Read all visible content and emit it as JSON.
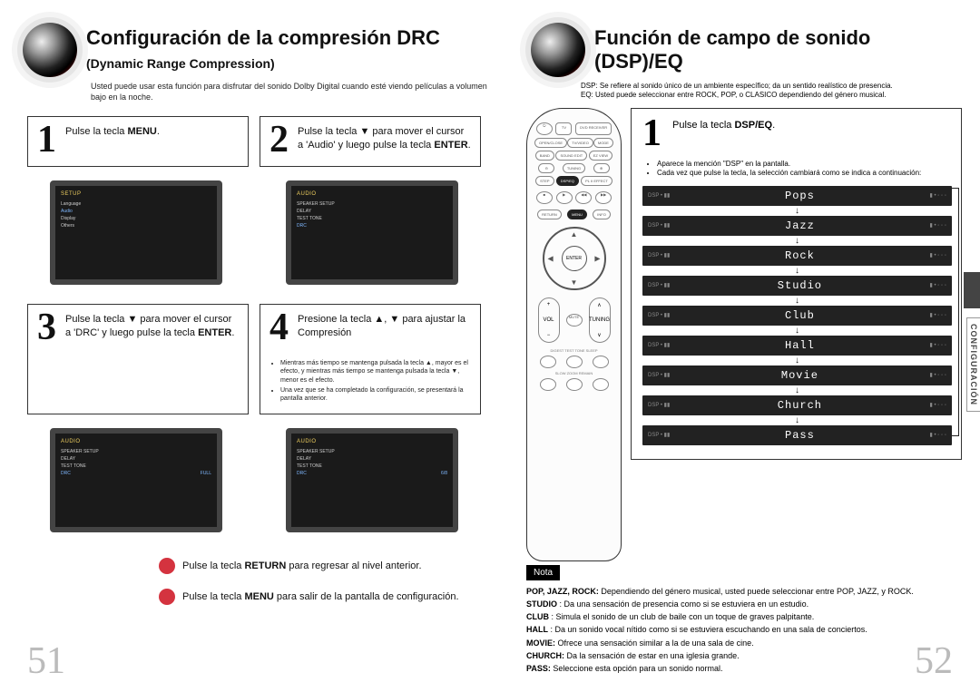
{
  "left": {
    "title_main": "Configuración de la compresión DRC ",
    "title_sub": "(Dynamic Range Compression)",
    "subtitle": "Usted puede usar esta función para disfrutar del sonido Dolby Digital cuando esté viendo películas a volumen bajo en la noche.",
    "steps": {
      "1": {
        "num": "1",
        "text_a": "Pulse la tecla ",
        "text_b": "MENU",
        "text_c": "."
      },
      "2": {
        "num": "2",
        "text": "Pulse la tecla ▼ para mover el cursor a 'Audio' y luego pulse la tecla ",
        "bold": "ENTER",
        "tail": "."
      },
      "3": {
        "num": "3",
        "text": "Pulse la tecla ▼ para mover el cursor a 'DRC' y luego pulse la tecla ",
        "bold": "ENTER",
        "tail": "."
      },
      "4": {
        "num": "4",
        "text": "Presione la tecla  ▲, ▼ para ajustar la Compresión",
        "notes": [
          "Mientras más tiempo se mantenga pulsada la tecla ▲, mayor es el efecto, y mientras más tiempo se mantenga pulsada la tecla ▼, menor es el efecto.",
          "Una vez que se ha completado la configuración, se presentará la pantalla anterior."
        ]
      }
    },
    "actions": {
      "return": {
        "pre": "Pulse la tecla ",
        "bold": "RETURN",
        "post": " para regresar al nivel anterior."
      },
      "menu": {
        "pre": "Pulse la tecla ",
        "bold": "MENU",
        "post": " para salir de la pantalla de configuración."
      }
    },
    "page_num": "51",
    "screenshots": {
      "s1_title": "SETUP",
      "s1_rows": [
        "Language",
        "Audio",
        "Display",
        "Others"
      ],
      "s2_title": "AUDIO",
      "s2_rows": [
        "SPEAKER SETUP",
        "DELAY",
        "TEST TONE",
        "DRC"
      ],
      "s3_title": "AUDIO",
      "s3_rows_left": [
        "SPEAKER SETUP",
        "DELAY",
        "TEST TONE",
        "DRC"
      ],
      "s3_vals": [
        "",
        "",
        "",
        "FULL"
      ],
      "s4_title": "AUDIO",
      "s4_rows_left": [
        "SPEAKER SETUP",
        "DELAY",
        "TEST TONE",
        "DRC"
      ],
      "s4_vals": [
        "",
        "",
        "",
        "6/8"
      ]
    }
  },
  "right": {
    "title": "Función de campo de sonido (DSP)/EQ",
    "subtitle_a": "DSP: Se refiere al sonido único de un ambiente específico; da un sentido realístico de presencia.",
    "subtitle_b": "EQ: Usted puede seleccionar entre ROCK, POP, o CLASICO dependiendo del género musical.",
    "step": {
      "num": "1",
      "text_a": "Pulse la tecla ",
      "text_b": "DSP/EQ",
      "text_c": ".",
      "notes": [
        "Aparece la mención \"DSP\" en la pantalla.",
        "Cada vez que pulse la tecla, la selección cambiará como se indica a continuación:"
      ]
    },
    "modes": [
      "Pops",
      "Jazz",
      "Rock",
      "Studio",
      "Club",
      "Hall",
      "Movie",
      "Church",
      "Pass"
    ],
    "seg_left": "DSP • ▮▮",
    "seg_right": "▮ • ◦ ◦ ◦",
    "nota_label": "Nota",
    "nota": {
      "pop": {
        "b": "POP, JAZZ, ROCK:",
        "t": " Dependiendo del género musical, usted puede seleccionar entre POP, JAZZ, y ROCK."
      },
      "studio": {
        "b": "STUDIO",
        "t": " : Da una sensación de presencia como si se estuviera en un estudio."
      },
      "club": {
        "b": "CLUB",
        "t": " : Simula el sonido de un club de baile con un toque de graves palpitante."
      },
      "hall": {
        "b": "HALL",
        "t": " : Da un sonido vocal nítido como si se estuviera escuchando en una sala de conciertos."
      },
      "movie": {
        "b": "MOVIE:",
        "t": " Ofrece una sensación similar a la de una sala de cine."
      },
      "church": {
        "b": "CHURCH:",
        "t": " Da la sensación de estar en una iglesia grande."
      },
      "pass": {
        "b": "PASS:",
        "t": " Seleccione esta opción para un sonido normal."
      }
    },
    "side_tab": "CONFIGURACIÓN",
    "page_num": "52"
  },
  "remote": {
    "rows": [
      [
        "⏻",
        "TV",
        "DVD RECEIVER"
      ],
      [
        "OPEN/CLOSE",
        "TV/VIDEO",
        "MODE"
      ],
      [
        "BAND",
        "SOUND EDIT",
        "EZ VIEW"
      ],
      [
        "⊖",
        "TUNING",
        "⊕"
      ],
      [
        "STEP",
        "DSP/EQ",
        "PL II EFFECT"
      ]
    ],
    "menu": "MENU",
    "return": "RETURN",
    "info": "INFO",
    "vol": "VOL",
    "tuning": "TUNING",
    "mute": "MUTE",
    "digest": "DIGEST  TEST TONE  SLEEP",
    "bottom": "SLOW  ZOOM  REMAIN"
  },
  "colors": {
    "accent_red": "#d4333f",
    "border": "#333333",
    "page_num": "#bbbbbb",
    "display_bg": "#222222"
  }
}
